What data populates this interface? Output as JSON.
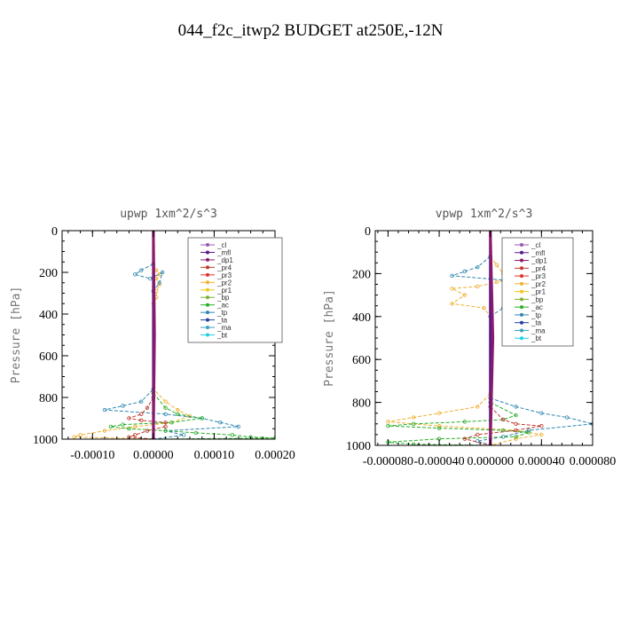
{
  "title": "044_f2c_itwp2  BUDGET at250E,-12N",
  "legend_entries": [
    "_cl",
    "_mfl",
    "_dp1",
    "_pr4",
    "_pr3",
    "_pr2",
    "_pr1",
    "_bp",
    "_ac",
    "_tp",
    "_ta",
    "_ma",
    "_bt"
  ],
  "colors": {
    "_cl": "#9b59b6",
    "_mfl": "#5a1a8a",
    "_dp1": "#8a1a6a",
    "_pr4": "#c0392b",
    "_pr3": "#e0302b",
    "_pr2": "#f0b030",
    "_pr1": "#f5c518",
    "_bp": "#7fb030",
    "_ac": "#27ae27",
    "_tp": "#2f86b0",
    "_ta": "#2040a0",
    "_ma": "#3aa0c0",
    "_bt": "#20d0e0"
  },
  "chart_data": [
    {
      "type": "line",
      "title": "upwp  1xm^2/s^3",
      "ylabel": "Pressure [hPa]",
      "xlabel": "",
      "xlim": [
        -0.00015,
        0.0002
      ],
      "ylim": [
        1000,
        0
      ],
      "xticks": [
        -0.0001,
        0.0,
        0.0001,
        0.0002
      ],
      "xtick_labels": [
        "-0.00010",
        "0.00000",
        "0.00010",
        "0.00020"
      ],
      "yticks": [
        0,
        200,
        400,
        600,
        800,
        1000
      ],
      "ytick_labels": [
        "0",
        "200",
        "400",
        "600",
        "800",
        "1000"
      ],
      "legend": "top-right",
      "series": [
        {
          "name": "_pr2",
          "points": [
            [
              0,
              160
            ],
            [
              5e-06,
              190
            ],
            [
              1e-05,
              210
            ],
            [
              5e-06,
              230
            ],
            [
              1e-05,
              260
            ],
            [
              5e-06,
              290
            ],
            [
              5e-06,
              320
            ],
            [
              0,
              350
            ],
            [
              0,
              760
            ],
            [
              2e-05,
              820
            ],
            [
              4e-05,
              860
            ],
            [
              6e-05,
              890
            ],
            [
              3e-05,
              920
            ],
            [
              -3e-05,
              940
            ],
            [
              -8e-05,
              960
            ],
            [
              -0.00012,
              980
            ],
            [
              -0.00013,
              990
            ],
            [
              0,
              1000
            ]
          ]
        },
        {
          "name": "_tp",
          "points": [
            [
              0,
              160
            ],
            [
              -2e-05,
              190
            ],
            [
              -3e-05,
              210
            ],
            [
              -5e-06,
              230
            ],
            [
              1.5e-05,
              200
            ],
            [
              1e-05,
              250
            ],
            [
              0,
              290
            ],
            [
              0,
              760
            ],
            [
              -2e-05,
              820
            ],
            [
              -5e-05,
              840
            ],
            [
              -8e-05,
              860
            ],
            [
              2e-05,
              880
            ],
            [
              8e-05,
              900
            ],
            [
              0.00011,
              920
            ],
            [
              0.00014,
              940
            ],
            [
              2e-05,
              960
            ],
            [
              5e-05,
              980
            ],
            [
              0,
              1000
            ]
          ]
        },
        {
          "name": "_ac",
          "points": [
            [
              0,
              780
            ],
            [
              2e-05,
              850
            ],
            [
              4e-05,
              880
            ],
            [
              8e-05,
              900
            ],
            [
              3e-05,
              920
            ],
            [
              -5e-05,
              930
            ],
            [
              -7e-05,
              940
            ],
            [
              -4e-05,
              950
            ],
            [
              2e-05,
              960
            ],
            [
              7e-05,
              970
            ],
            [
              0.00013,
              980
            ],
            [
              0.00016,
              990
            ],
            [
              0.0002,
              995
            ],
            [
              0,
              1000
            ]
          ]
        },
        {
          "name": "_pr4",
          "points": [
            [
              0,
              800
            ],
            [
              -1e-05,
              850
            ],
            [
              -2e-05,
              880
            ],
            [
              -4e-05,
              900
            ],
            [
              -2e-05,
              910
            ],
            [
              2e-05,
              920
            ],
            [
              2e-05,
              940
            ],
            [
              -1e-05,
              960
            ],
            [
              -3e-05,
              980
            ],
            [
              -4e-05,
              990
            ],
            [
              0,
              1000
            ]
          ]
        },
        {
          "name": "_mfl",
          "points": [
            [
              0,
              0
            ],
            [
              0,
              1000
            ]
          ]
        },
        {
          "name": "_dp1",
          "points": [
            [
              0,
              0
            ],
            [
              2e-06,
              500
            ],
            [
              0,
              1000
            ]
          ]
        }
      ]
    },
    {
      "type": "line",
      "title": "vpwp  1xm^2/s^3",
      "ylabel": "Pressure [hPa]",
      "xlabel": "",
      "xlim": [
        -9e-05,
        8e-05
      ],
      "ylim": [
        1000,
        0
      ],
      "xticks": [
        -8e-05,
        -4e-05,
        0.0,
        4e-05,
        8e-05
      ],
      "xtick_labels": [
        "-0.000080",
        "-0.000040",
        "0.000000",
        "0.000040",
        "0.000080"
      ],
      "yticks": [
        0,
        200,
        400,
        600,
        800,
        1000
      ],
      "ytick_labels": [
        "0",
        "200",
        "400",
        "600",
        "800",
        "1000"
      ],
      "legend": "top-right",
      "series": [
        {
          "name": "_pr2",
          "points": [
            [
              0,
              120
            ],
            [
              5e-06,
              160
            ],
            [
              1e-05,
              200
            ],
            [
              2e-05,
              220
            ],
            [
              5e-06,
              240
            ],
            [
              -1e-05,
              260
            ],
            [
              -3e-05,
              270
            ],
            [
              -2e-05,
              300
            ],
            [
              -3e-05,
              340
            ],
            [
              -5e-06,
              360
            ],
            [
              0,
              400
            ],
            [
              0,
              760
            ],
            [
              -1e-05,
              820
            ],
            [
              -4e-05,
              850
            ],
            [
              -6e-05,
              870
            ],
            [
              -8e-05,
              890
            ],
            [
              -4e-05,
              910
            ],
            [
              2e-05,
              930
            ],
            [
              4e-05,
              950
            ],
            [
              2e-05,
              970
            ],
            [
              0,
              1000
            ]
          ]
        },
        {
          "name": "_tp",
          "points": [
            [
              0,
              120
            ],
            [
              -1e-05,
              170
            ],
            [
              -2e-05,
              190
            ],
            [
              -3e-05,
              210
            ],
            [
              1e-05,
              230
            ],
            [
              2e-05,
              270
            ],
            [
              3e-05,
              300
            ],
            [
              2e-05,
              340
            ],
            [
              1e-05,
              360
            ],
            [
              0,
              400
            ],
            [
              0,
              780
            ],
            [
              2e-05,
              820
            ],
            [
              4e-05,
              850
            ],
            [
              6e-05,
              870
            ],
            [
              8e-05,
              900
            ],
            [
              3e-05,
              930
            ],
            [
              1e-05,
              960
            ],
            [
              -1e-05,
              980
            ],
            [
              0,
              1000
            ]
          ]
        },
        {
          "name": "_ac",
          "points": [
            [
              0,
              800
            ],
            [
              2e-05,
              860
            ],
            [
              1e-05,
              880
            ],
            [
              -2e-05,
              890
            ],
            [
              -6e-05,
              900
            ],
            [
              -8e-05,
              910
            ],
            [
              -4e-05,
              920
            ],
            [
              1e-05,
              930
            ],
            [
              3e-05,
              940
            ],
            [
              2e-05,
              960
            ],
            [
              -4e-05,
              970
            ],
            [
              -8e-05,
              985
            ],
            [
              -6e-05,
              995
            ],
            [
              0,
              1000
            ]
          ]
        },
        {
          "name": "_pr4",
          "points": [
            [
              0,
              820
            ],
            [
              1e-05,
              880
            ],
            [
              2e-05,
              900
            ],
            [
              4e-05,
              910
            ],
            [
              2e-05,
              930
            ],
            [
              -1e-05,
              950
            ],
            [
              -2e-05,
              970
            ],
            [
              0,
              1000
            ]
          ]
        },
        {
          "name": "_mfl",
          "points": [
            [
              0,
              0
            ],
            [
              0,
              1000
            ]
          ]
        },
        {
          "name": "_dp1",
          "points": [
            [
              0,
              0
            ],
            [
              2e-06,
              500
            ],
            [
              0,
              1000
            ]
          ]
        }
      ]
    }
  ]
}
